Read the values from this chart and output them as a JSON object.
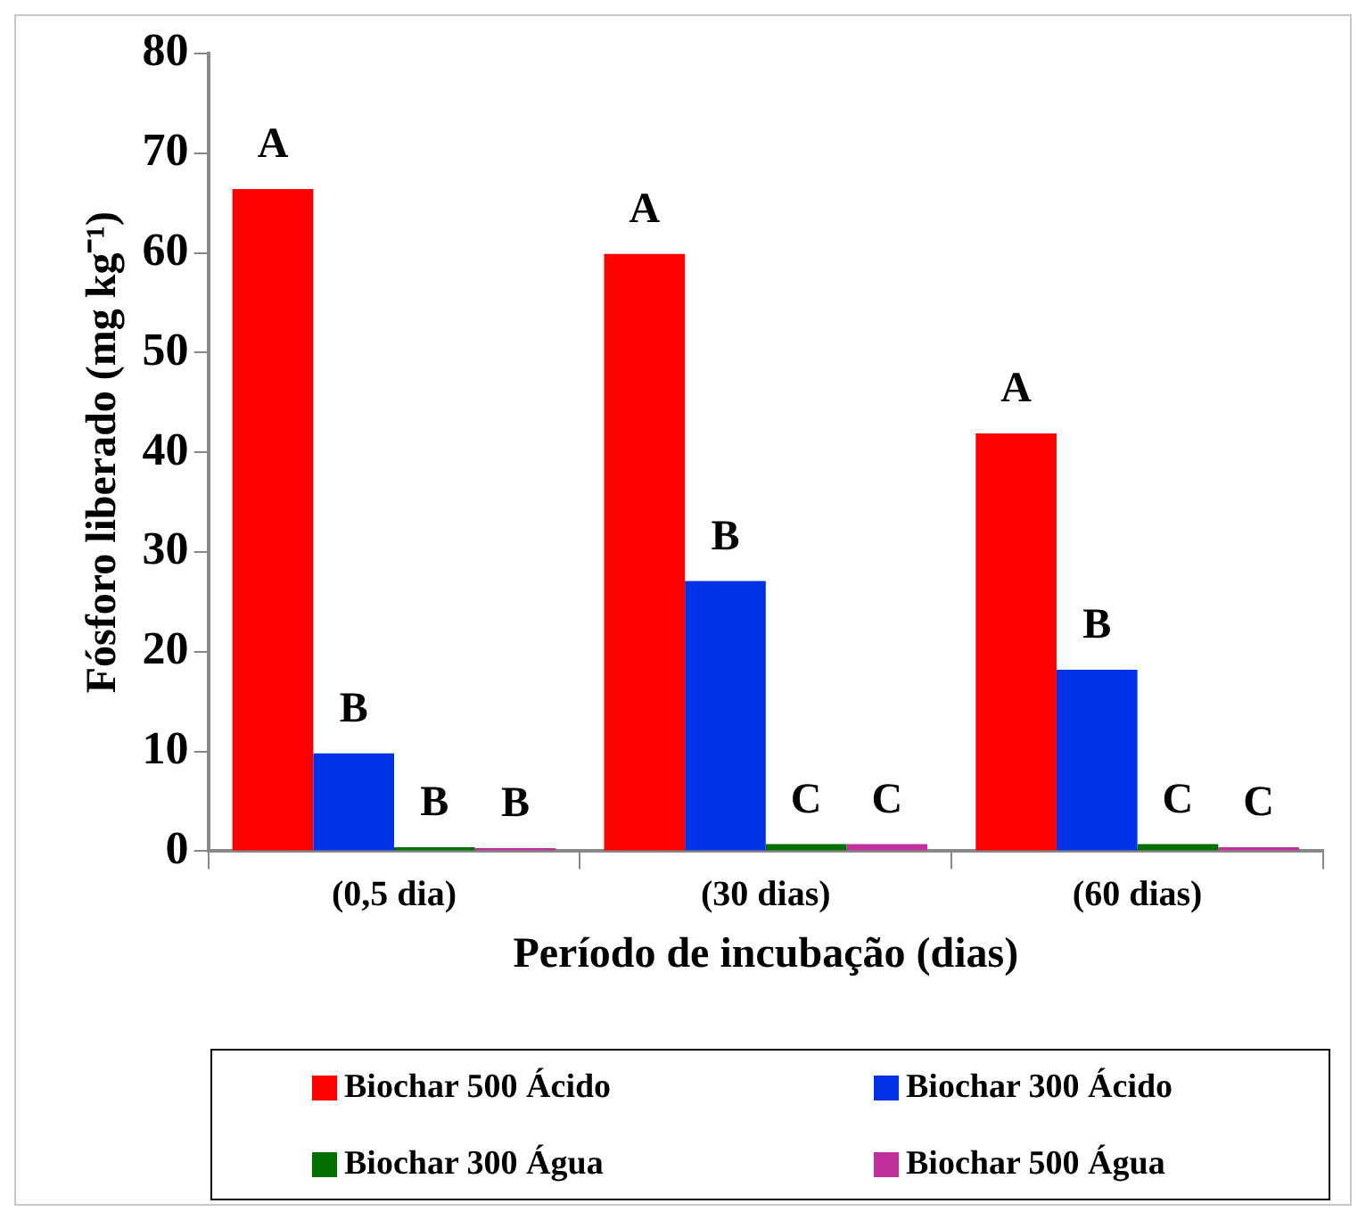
{
  "chart_data": {
    "type": "bar",
    "xlabel": "Período de incubação (dias)",
    "ylabel": "Fósforo liberado (mg kg⁻¹)",
    "categories": [
      "(0,5 dia)",
      "(30 dias)",
      "(60 dias)"
    ],
    "series": [
      {
        "name": "Biochar 500 Ácido",
        "color": "#ff0000",
        "values": [
          66.4,
          59.9,
          41.9
        ],
        "value_labels": [
          "A",
          "A",
          "A"
        ]
      },
      {
        "name": "Biochar 300 Ácido",
        "color": "#0033e6",
        "values": [
          9.8,
          27.1,
          18.2
        ],
        "value_labels": [
          "B",
          "B",
          "B"
        ]
      },
      {
        "name": "Biochar 300 Água",
        "color": "#007000",
        "values": [
          0.4,
          0.7,
          0.7
        ],
        "value_labels": [
          "B",
          "C",
          "C"
        ]
      },
      {
        "name": "Biochar 500 Água",
        "color": "#c0309a",
        "values": [
          0.3,
          0.7,
          0.4
        ],
        "value_labels": [
          "B",
          "C",
          "C"
        ]
      }
    ],
    "ylim": [
      0,
      80
    ],
    "yticks": [
      0,
      10,
      20,
      30,
      40,
      50,
      60,
      70,
      80
    ],
    "grid": false,
    "legend": "bottom"
  }
}
